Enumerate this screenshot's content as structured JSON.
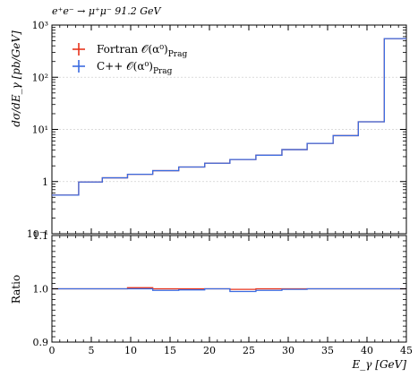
{
  "chart_data": {
    "type": "line",
    "title": "e⁺e⁻ → μ⁺μ⁻ 91.2 GeV",
    "xlabel": "E_γ [GeV]",
    "ylabel_main": "dσ/dE_γ [pb/GeV]",
    "ylabel_ratio": "Ratio",
    "x_range": [
      0,
      45
    ],
    "main_y_range": [
      0.1,
      1000
    ],
    "main_y_scale": "log",
    "ratio_y_range": [
      0.9,
      1.1
    ],
    "x_ticks": [
      "0",
      "5",
      "10",
      "15",
      "20",
      "25",
      "30",
      "35",
      "40",
      "45"
    ],
    "main_y_ticks": [
      "10⁻¹",
      "1",
      "10¹",
      "10²",
      "10³"
    ],
    "ratio_y_ticks": [
      "0.9",
      "1.0",
      "1.1"
    ],
    "bin_edges": [
      0,
      3.4,
      6.4,
      9.6,
      12.8,
      16.1,
      19.4,
      22.6,
      25.9,
      29.2,
      32.4,
      35.7,
      38.9,
      42.2,
      45
    ],
    "series": [
      {
        "name": "Fortran 𝒪(α⁰)",
        "name_sub": "Prag",
        "color": "#e8341c",
        "values": [
          0.55,
          0.98,
          1.18,
          1.38,
          1.62,
          1.9,
          2.25,
          2.65,
          3.2,
          4.1,
          5.4,
          7.6,
          14.0,
          550
        ],
        "ratio": [
          1.0,
          1.0,
          1.0,
          1.002,
          1.0,
          1.0,
          1.0,
          0.999,
          1.0,
          1.0,
          1.0,
          1.0,
          1.0,
          1.0
        ]
      },
      {
        "name": "C++ 𝒪(α⁰)",
        "name_sub": "Prag",
        "color": "#3b6be0",
        "values": [
          0.55,
          0.98,
          1.18,
          1.38,
          1.62,
          1.9,
          2.25,
          2.65,
          3.2,
          4.1,
          5.4,
          7.6,
          14.0,
          550
        ],
        "ratio": [
          1.0,
          1.0,
          1.0,
          1.0,
          0.997,
          0.998,
          1.0,
          0.995,
          0.997,
          0.999,
          1.0,
          1.0,
          1.0,
          1.0
        ]
      }
    ]
  }
}
